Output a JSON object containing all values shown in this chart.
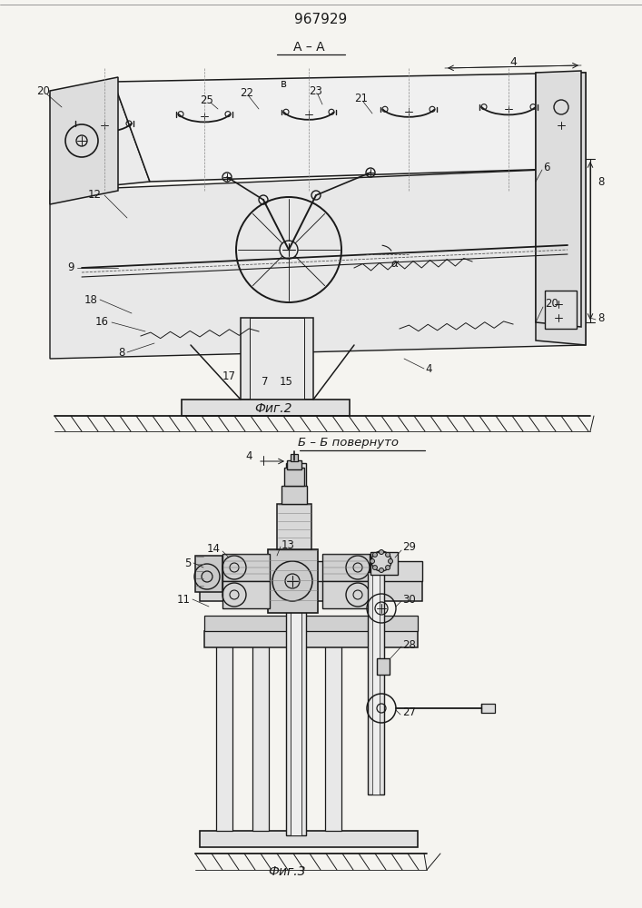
{
  "title": "967929",
  "fig1_caption": "Фиг.2",
  "fig2_caption": "Фиг.3",
  "fig1_header": "А – А",
  "fig2_header": "Б – Б повернуто",
  "bg_color": "#f5f4f0",
  "line_color": "#1a1a1a",
  "lw": 0.9
}
